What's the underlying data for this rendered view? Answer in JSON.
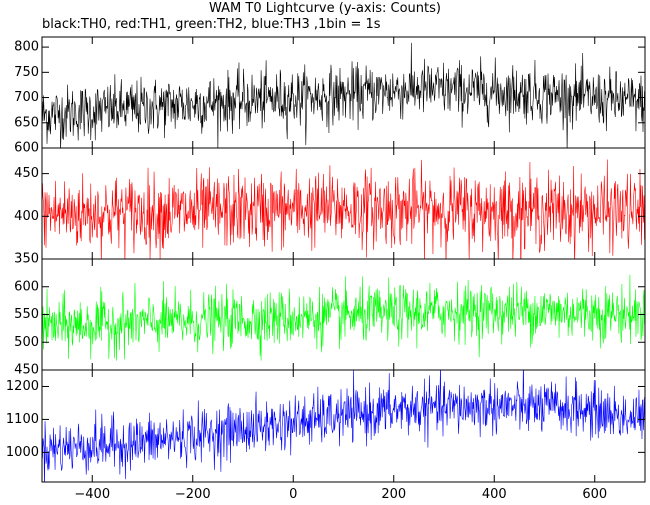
{
  "title": "WAM T0 Lightcurve (y-axis: Counts)",
  "subtitle": "black:TH0, red:TH1, green:TH2, blue:TH3 ,1bin = 1s",
  "chart_data": {
    "type": "line",
    "title": "WAM T0 Lightcurve (y-axis: Counts)",
    "xlabel": "",
    "ylabel": "Counts",
    "xlim": [
      -500,
      700
    ],
    "x_ticks": [
      -400,
      -200,
      0,
      200,
      400,
      600
    ],
    "bin_seconds": 1,
    "grid": false,
    "panels": [
      {
        "name": "TH0",
        "color": "#000000",
        "ylim": [
          600,
          820
        ],
        "y_ticks": [
          600,
          650,
          700,
          750,
          800
        ],
        "trend": [
          [
            -500,
            665
          ],
          [
            -200,
            688
          ],
          [
            100,
            705
          ],
          [
            250,
            718
          ],
          [
            450,
            710
          ],
          [
            700,
            690
          ]
        ],
        "noise": 28
      },
      {
        "name": "TH1",
        "color": "#ff0000",
        "ylim": [
          350,
          480
        ],
        "y_ticks": [
          350,
          400,
          450
        ],
        "trend": [
          [
            -500,
            403
          ],
          [
            -200,
            405
          ],
          [
            100,
            410
          ],
          [
            300,
            408
          ],
          [
            500,
            406
          ],
          [
            700,
            406
          ]
        ],
        "noise": 22
      },
      {
        "name": "TH2",
        "color": "#00ff00",
        "ylim": [
          450,
          650
        ],
        "y_ticks": [
          450,
          500,
          550,
          600
        ],
        "trend": [
          [
            -500,
            528
          ],
          [
            -200,
            538
          ],
          [
            100,
            547
          ],
          [
            300,
            556
          ],
          [
            500,
            556
          ],
          [
            700,
            550
          ]
        ],
        "noise": 25
      },
      {
        "name": "TH3",
        "color": "#0000ff",
        "ylim": [
          910,
          1250
        ],
        "y_ticks": [
          1000,
          1100,
          1200
        ],
        "trend": [
          [
            -500,
            1010
          ],
          [
            -300,
            1030
          ],
          [
            -150,
            1060
          ],
          [
            0,
            1090
          ],
          [
            100,
            1110
          ],
          [
            200,
            1130
          ],
          [
            400,
            1140
          ],
          [
            550,
            1135
          ],
          [
            700,
            1100
          ]
        ],
        "noise": 40
      }
    ]
  }
}
